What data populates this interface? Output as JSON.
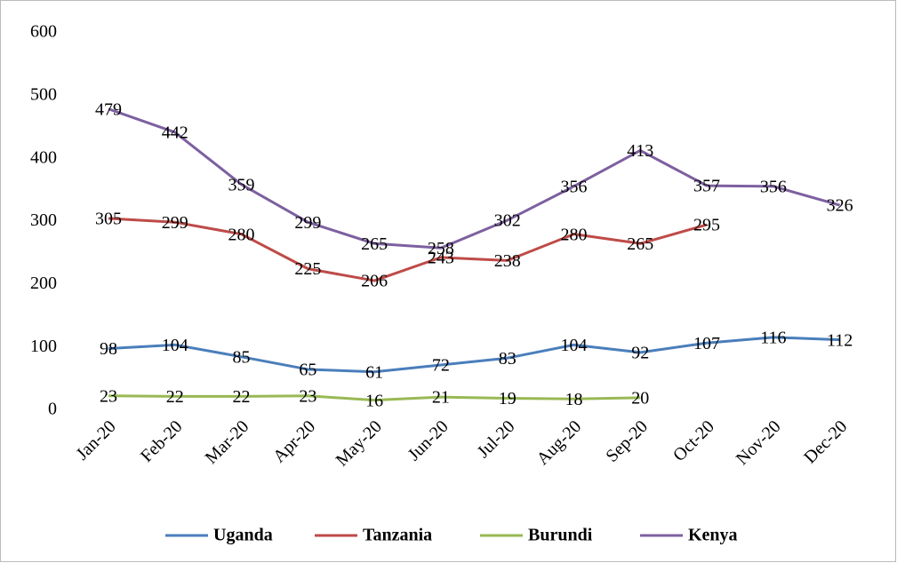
{
  "chart_data": {
    "type": "line",
    "categories": [
      "Jan-20",
      "Feb-20",
      "Mar-20",
      "Apr-20",
      "May-20",
      "Jun-20",
      "Jul-20",
      "Aug-20",
      "Sep-20",
      "Oct-20",
      "Nov-20",
      "Dec-20"
    ],
    "series": [
      {
        "name": "Uganda",
        "color": "#4a7ebb",
        "values": [
          98,
          104,
          85,
          65,
          61,
          72,
          83,
          104,
          92,
          107,
          116,
          112
        ]
      },
      {
        "name": "Tanzania",
        "color": "#be4b48",
        "values": [
          305,
          299,
          280,
          225,
          206,
          243,
          238,
          280,
          265,
          295,
          null,
          null
        ]
      },
      {
        "name": "Burundi",
        "color": "#98b954",
        "values": [
          23,
          22,
          22,
          23,
          16,
          21,
          19,
          18,
          20,
          null,
          null,
          null
        ]
      },
      {
        "name": "Kenya",
        "color": "#7d60a0",
        "values": [
          479,
          442,
          359,
          299,
          265,
          258,
          302,
          356,
          413,
          357,
          356,
          326
        ]
      }
    ],
    "ylim": [
      0,
      600
    ],
    "yticks": [
      0,
      100,
      200,
      300,
      400,
      500,
      600
    ],
    "grid": false,
    "legend": "bottom"
  }
}
